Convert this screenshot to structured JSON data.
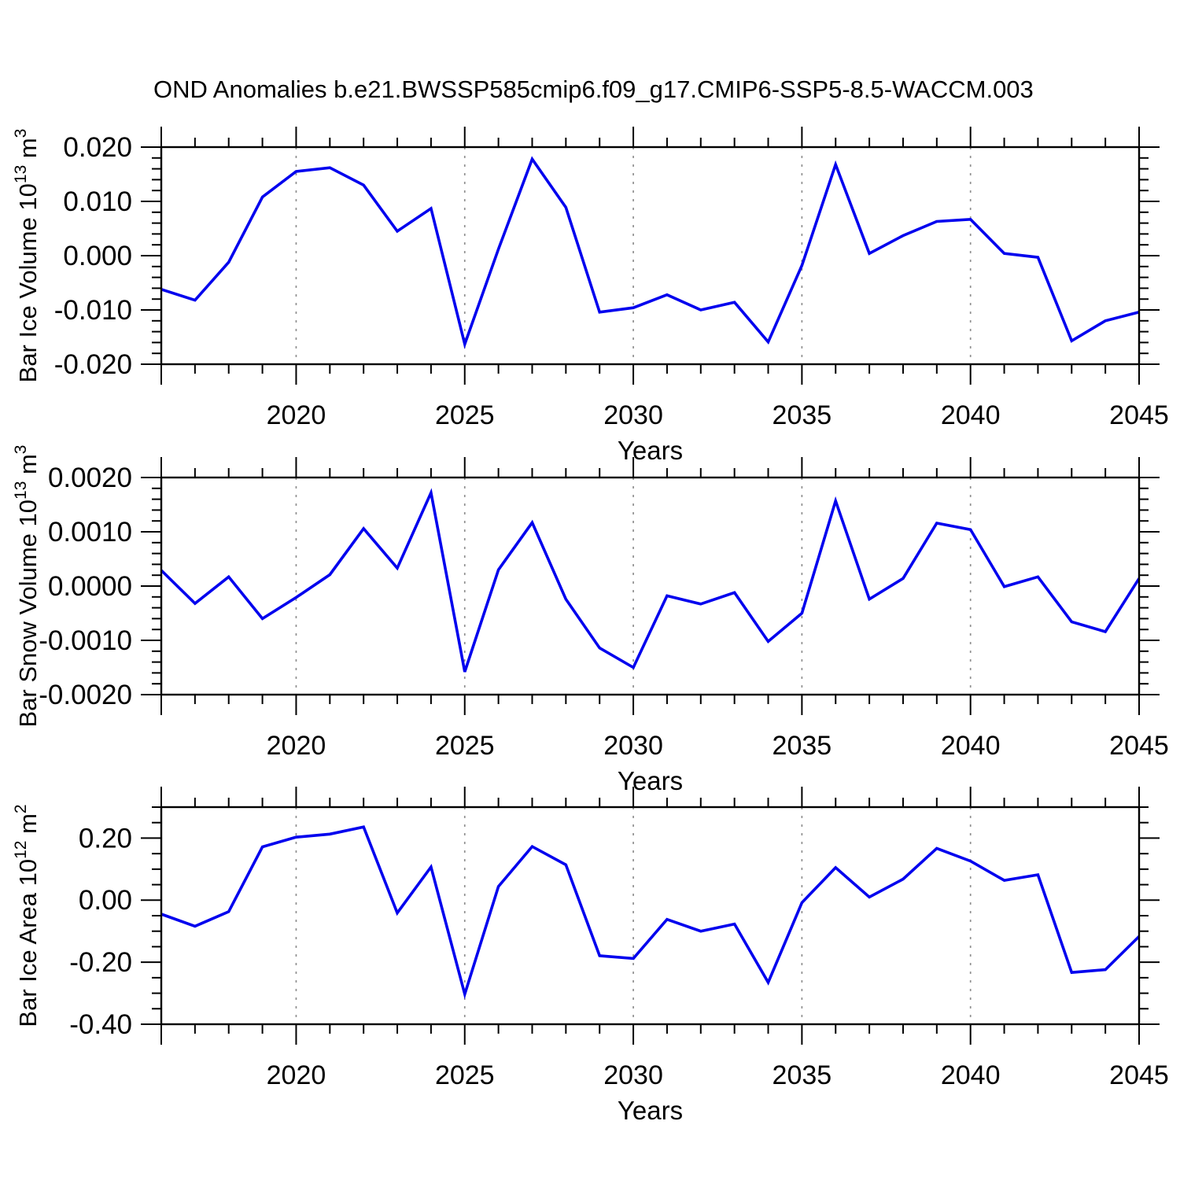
{
  "title": "OND Anomalies b.e21.BWSSP585cmip6.f09_g17.CMIP6-SSP5-8.5-WACCM.003",
  "line_color": "#0000EE",
  "grid_color": "#909090",
  "axis_color": "#000000",
  "chart_data": [
    {
      "id": "bar-ice-volume",
      "type": "line",
      "title": "",
      "xlabel": "Years",
      "ylabel_plain": "Bar Ice Volume 10^13 m^3",
      "ylabel_parts": [
        {
          "t": "Bar Ice Volume 10"
        },
        {
          "t": "13",
          "sup": true
        },
        {
          "t": " m"
        },
        {
          "t": "3",
          "sup": true
        }
      ],
      "xlim": [
        2016,
        2045
      ],
      "ylim": [
        -0.02,
        0.02
      ],
      "xtick_labels": [
        "2020",
        "2025",
        "2030",
        "2035",
        "2040",
        "2045"
      ],
      "xtick_values": [
        2020,
        2025,
        2030,
        2035,
        2040,
        2045
      ],
      "ytick_labels": [
        "0.020",
        "0.010",
        "0.000",
        "-0.010",
        "-0.020"
      ],
      "ytick_values": [
        0.02,
        0.01,
        0.0,
        -0.01,
        -0.02
      ],
      "y_minor_step": 0.002,
      "x_minor_step": 1,
      "gridline_years": [
        2020,
        2025,
        2030,
        2035,
        2040
      ],
      "x": [
        2016,
        2017,
        2018,
        2019,
        2020,
        2021,
        2022,
        2023,
        2024,
        2025,
        2026,
        2027,
        2028,
        2029,
        2030,
        2031,
        2032,
        2033,
        2034,
        2035,
        2036,
        2037,
        2038,
        2039,
        2040,
        2041,
        2042,
        2043,
        2044,
        2045
      ],
      "values": [
        -0.0062,
        -0.0082,
        -0.0012,
        0.0108,
        0.0155,
        0.0162,
        0.013,
        0.0045,
        0.0087,
        -0.0163,
        0.0012,
        0.0178,
        0.0089,
        -0.0104,
        -0.0096,
        -0.0072,
        -0.01,
        -0.0086,
        -0.0159,
        -0.0018,
        0.0168,
        0.0004,
        0.0037,
        0.0063,
        0.0067,
        0.0004,
        -0.0003,
        -0.0157,
        -0.012,
        -0.0104
      ]
    },
    {
      "id": "bar-snow-volume",
      "type": "line",
      "title": "",
      "xlabel": "Years",
      "ylabel_plain": "Bar Snow Volume 10^13 m^3",
      "ylabel_parts": [
        {
          "t": "Bar Snow Volume 10"
        },
        {
          "t": "13",
          "sup": true
        },
        {
          "t": " m"
        },
        {
          "t": "3",
          "sup": true
        }
      ],
      "xlim": [
        2016,
        2045
      ],
      "ylim": [
        -0.002,
        0.002
      ],
      "xtick_labels": [
        "2020",
        "2025",
        "2030",
        "2035",
        "2040",
        "2045"
      ],
      "xtick_values": [
        2020,
        2025,
        2030,
        2035,
        2040,
        2045
      ],
      "ytick_labels": [
        "0.0020",
        "0.0010",
        "0.0000",
        "-0.0010",
        "-0.0020"
      ],
      "ytick_values": [
        0.002,
        0.001,
        0.0,
        -0.001,
        -0.002
      ],
      "y_minor_step": 0.0002,
      "x_minor_step": 1,
      "gridline_years": [
        2020,
        2025,
        2030,
        2035,
        2040
      ],
      "x": [
        2016,
        2017,
        2018,
        2019,
        2020,
        2021,
        2022,
        2023,
        2024,
        2025,
        2026,
        2027,
        2028,
        2029,
        2030,
        2031,
        2032,
        2033,
        2034,
        2035,
        2036,
        2037,
        2038,
        2039,
        2040,
        2041,
        2042,
        2043,
        2044,
        2045
      ],
      "values": [
        0.00029,
        -0.00032,
        0.00017,
        -0.0006,
        -0.00021,
        0.00021,
        0.00106,
        0.00033,
        0.00172,
        -0.00158,
        0.0003,
        0.00117,
        -0.00024,
        -0.00114,
        -0.0015,
        -0.00018,
        -0.00033,
        -0.00012,
        -0.00102,
        -0.0005,
        0.00157,
        -0.00024,
        0.00014,
        0.00116,
        0.00104,
        -1e-05,
        0.00017,
        -0.00066,
        -0.00084,
        0.00014
      ]
    },
    {
      "id": "bar-ice-area",
      "type": "line",
      "title": "",
      "xlabel": "Years",
      "ylabel_plain": "Bar Ice Area 10^12 m^2",
      "ylabel_parts": [
        {
          "t": "Bar Ice Area 10"
        },
        {
          "t": "12",
          "sup": true
        },
        {
          "t": " m"
        },
        {
          "t": "2",
          "sup": true
        }
      ],
      "xlim": [
        2016,
        2045
      ],
      "ylim": [
        -0.4,
        0.3
      ],
      "xtick_labels": [
        "2020",
        "2025",
        "2030",
        "2035",
        "2040",
        "2045"
      ],
      "xtick_values": [
        2020,
        2025,
        2030,
        2035,
        2040,
        2045
      ],
      "ytick_labels": [
        "0.20",
        "0.00",
        "-0.20",
        "-0.40"
      ],
      "ytick_values": [
        0.2,
        0.0,
        -0.2,
        -0.4
      ],
      "y_minor_step": 0.05,
      "x_minor_step": 1,
      "gridline_years": [
        2020,
        2025,
        2030,
        2035,
        2040
      ],
      "x": [
        2016,
        2017,
        2018,
        2019,
        2020,
        2021,
        2022,
        2023,
        2024,
        2025,
        2026,
        2027,
        2028,
        2029,
        2030,
        2031,
        2032,
        2033,
        2034,
        2035,
        2036,
        2037,
        2038,
        2039,
        2040,
        2041,
        2042,
        2043,
        2044,
        2045
      ],
      "values": [
        -0.045,
        -0.084,
        -0.037,
        0.172,
        0.203,
        0.213,
        0.236,
        -0.041,
        0.107,
        -0.303,
        0.044,
        0.173,
        0.114,
        -0.179,
        -0.188,
        -0.062,
        -0.1,
        -0.077,
        -0.265,
        -0.008,
        0.105,
        0.01,
        0.068,
        0.167,
        0.126,
        0.064,
        0.082,
        -0.233,
        -0.224,
        -0.117
      ]
    }
  ]
}
